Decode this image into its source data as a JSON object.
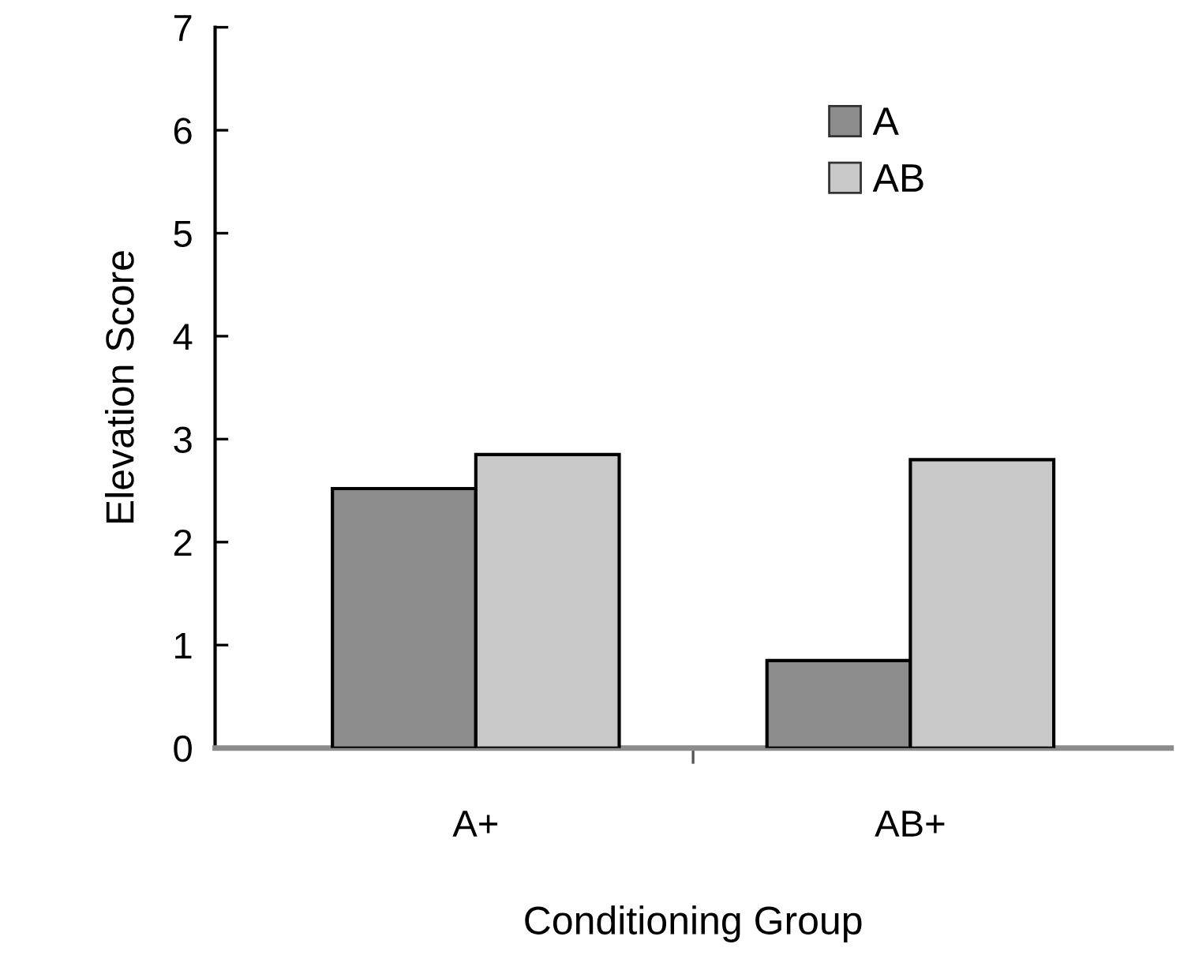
{
  "chart_data": {
    "type": "bar",
    "xlabel": "Conditioning Group",
    "ylabel": "Elevation Score",
    "categories": [
      "A+",
      "AB+"
    ],
    "series": [
      {
        "name": "A",
        "color": "#8c8c8c",
        "values": [
          2.52,
          0.85
        ]
      },
      {
        "name": "AB",
        "color": "#c8c8c8",
        "values": [
          2.85,
          2.8
        ]
      }
    ],
    "ylim": [
      0,
      7
    ],
    "yticks": [
      0,
      1,
      2,
      3,
      4,
      5,
      6,
      7
    ],
    "grid": false,
    "legend": "top right"
  }
}
